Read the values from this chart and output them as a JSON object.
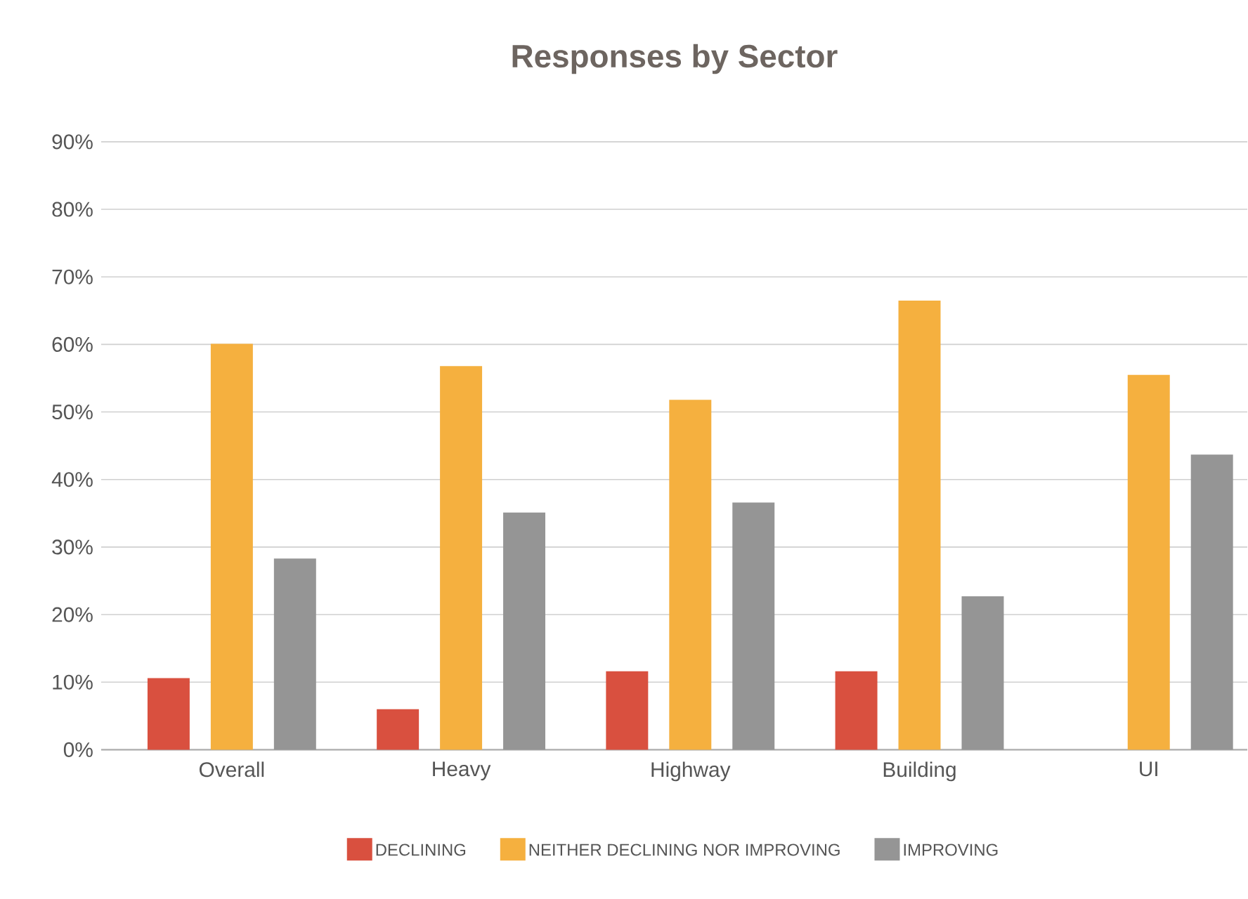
{
  "chart_data": {
    "type": "bar",
    "title": "Responses by Sector",
    "categories": [
      "Overall",
      "Heavy",
      "Highway",
      "Building",
      "UI"
    ],
    "series": [
      {
        "name": "DECLINING",
        "color": "#d9503f",
        "values": [
          10.6,
          6.0,
          11.6,
          11.6,
          null
        ]
      },
      {
        "name": "NEITHER DECLINING NOR IMPROVING",
        "color": "#f5b03f",
        "values": [
          60.1,
          56.8,
          51.8,
          66.5,
          55.5
        ]
      },
      {
        "name": "IMPROVING",
        "color": "#959595",
        "values": [
          28.3,
          35.1,
          36.6,
          22.7,
          43.7
        ]
      }
    ],
    "ylim": [
      0,
      90
    ],
    "yticks": [
      {
        "value": 0,
        "label": "0%"
      },
      {
        "value": 10,
        "label": "10%"
      },
      {
        "value": 20,
        "label": "20%"
      },
      {
        "value": 30,
        "label": "30%"
      },
      {
        "value": 40,
        "label": "40%"
      },
      {
        "value": 50,
        "label": "50%"
      },
      {
        "value": 60,
        "label": "60%"
      },
      {
        "value": 70,
        "label": "70%"
      },
      {
        "value": 80,
        "label": "80%"
      },
      {
        "value": 90,
        "label": "90%"
      }
    ],
    "grid": "y",
    "legend": "bottom"
  }
}
